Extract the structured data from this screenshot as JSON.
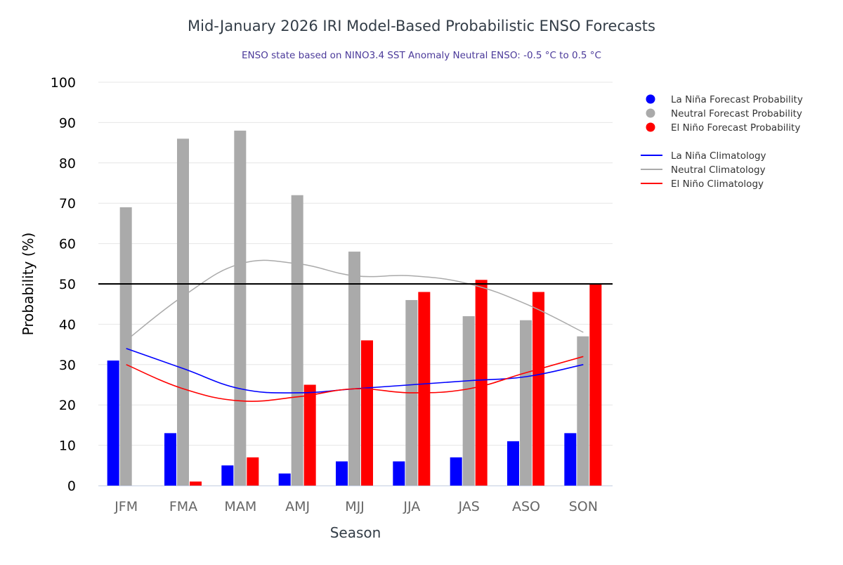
{
  "chart_data": {
    "type": "bar",
    "title": "Mid-January 2026 IRI Model-Based Probabilistic ENSO Forecasts",
    "subtitle": "ENSO state based on NINO3.4 SST Anomaly Neutral ENSO: -0.5 °C to 0.5 °C",
    "xlabel": "Season",
    "ylabel": "Probability (%)",
    "ylim": [
      0,
      100
    ],
    "yticks": [
      0,
      10,
      20,
      30,
      40,
      50,
      60,
      70,
      80,
      90,
      100
    ],
    "grid": true,
    "reference_line": 50,
    "legend_position": "right",
    "categories": [
      "JFM",
      "FMA",
      "MAM",
      "AMJ",
      "MJJ",
      "JJA",
      "JAS",
      "ASO",
      "SON"
    ],
    "series": [
      {
        "name": "La Niña Forecast Probability",
        "kind": "bar",
        "color": "#0000ff",
        "values": [
          31,
          13,
          5,
          3,
          6,
          6,
          7,
          11,
          13
        ]
      },
      {
        "name": "Neutral Forecast Probability",
        "kind": "bar",
        "color": "#aaaaaa",
        "values": [
          69,
          86,
          88,
          72,
          58,
          46,
          42,
          41,
          37
        ]
      },
      {
        "name": "El Niño Forecast Probability",
        "kind": "bar",
        "color": "#ff0000",
        "values": [
          0,
          1,
          7,
          25,
          36,
          48,
          51,
          48,
          50
        ]
      },
      {
        "name": "La Niña Climatology",
        "kind": "line",
        "color": "#0000ff",
        "values": [
          34,
          29,
          24,
          23,
          24,
          25,
          26,
          27,
          30
        ]
      },
      {
        "name": "Neutral Climatology",
        "kind": "line",
        "color": "#aaaaaa",
        "values": [
          36,
          47,
          55,
          55,
          52,
          52,
          50,
          45,
          38
        ]
      },
      {
        "name": "El Niño Climatology",
        "kind": "line",
        "color": "#ff0000",
        "values": [
          30,
          24,
          21,
          22,
          24,
          23,
          24,
          28,
          32
        ]
      }
    ]
  }
}
